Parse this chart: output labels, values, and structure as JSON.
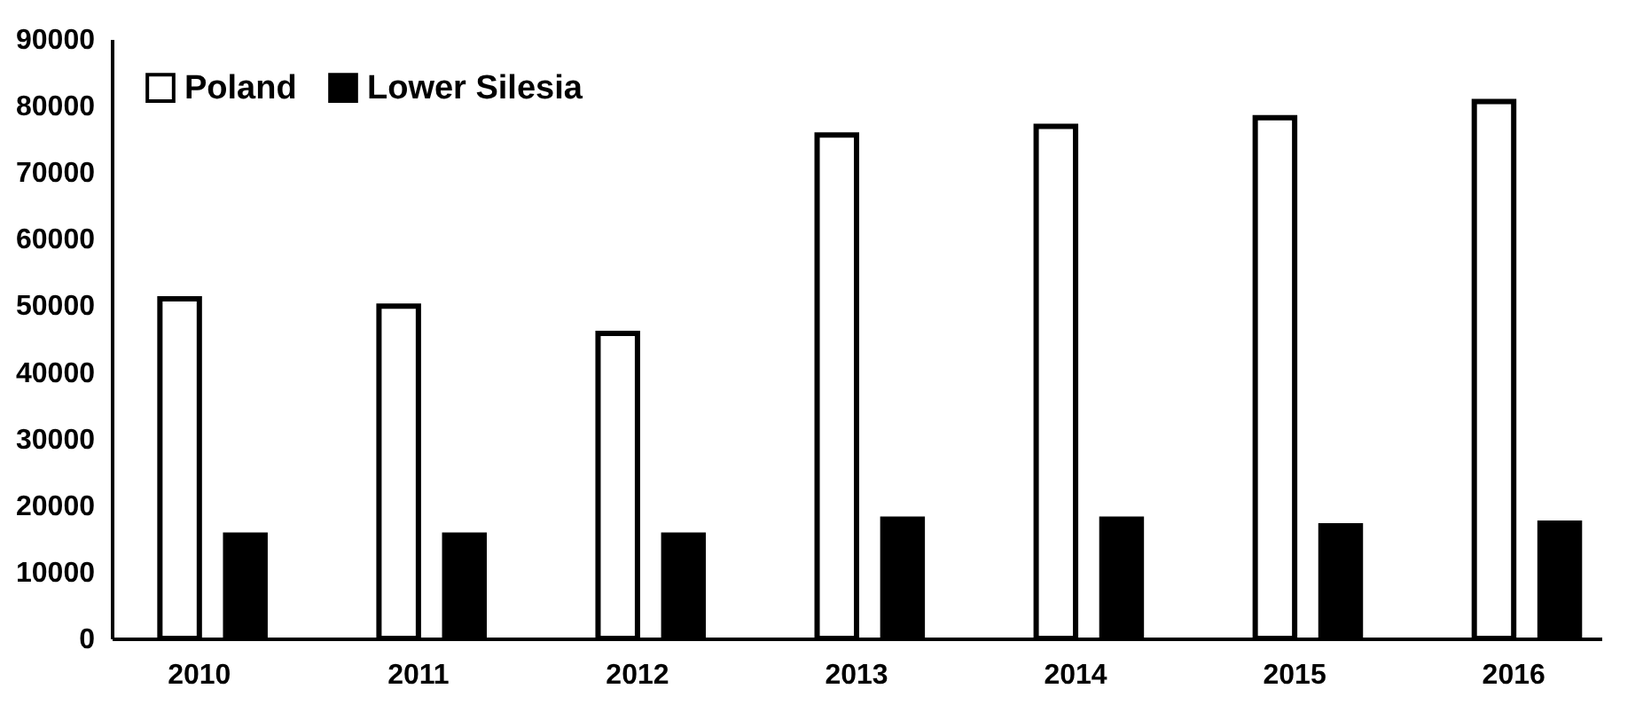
{
  "chart_data": {
    "type": "bar",
    "categories": [
      "2010",
      "2011",
      "2012",
      "2013",
      "2014",
      "2015",
      "2016"
    ],
    "series": [
      {
        "name": "Poland",
        "color": "#ffffff",
        "values": [
          51000,
          49900,
          45800,
          75600,
          76900,
          78200,
          80600
        ]
      },
      {
        "name": "Lower Silesia",
        "color": "#000000",
        "values": [
          15500,
          15500,
          15500,
          17900,
          17900,
          16900,
          17300
        ]
      }
    ],
    "ylim": [
      0,
      90000
    ],
    "yticks": [
      0,
      10000,
      20000,
      30000,
      40000,
      50000,
      60000,
      70000,
      80000,
      90000
    ],
    "grid": false,
    "legend": "top left"
  }
}
